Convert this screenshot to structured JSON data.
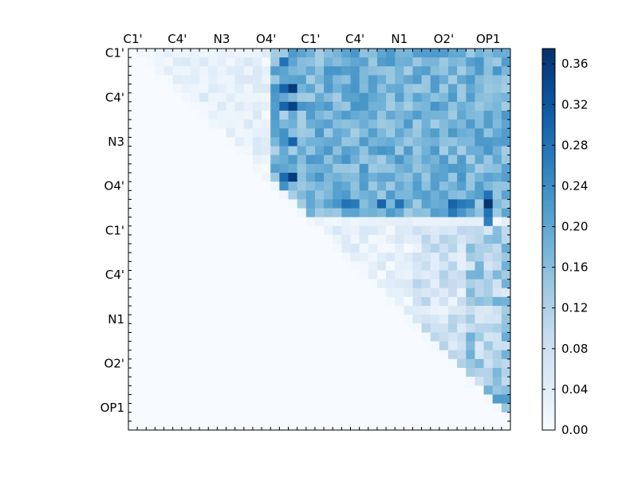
{
  "chart_data": {
    "type": "heatmap",
    "title": "",
    "xlabel": "",
    "ylabel": "",
    "x_tick_labels": [
      "C1'",
      "C4'",
      "N3",
      "O4'",
      "C1'",
      "C4'",
      "N1",
      "O2'",
      "OP1"
    ],
    "y_tick_labels": [
      "C1'",
      "C4'",
      "N3",
      "O4'",
      "C1'",
      "C4'",
      "N1",
      "O2'",
      "OP1"
    ],
    "grid_size": 43,
    "colormap": "Blues",
    "colorbar": {
      "vmin": 0.0,
      "vmax": 0.375,
      "tick_labels": [
        "0.00",
        "0.04",
        "0.08",
        "0.12",
        "0.16",
        "0.20",
        "0.24",
        "0.28",
        "0.32",
        "0.36"
      ],
      "tick_values": [
        0.0,
        0.04,
        0.08,
        0.12,
        0.16,
        0.2,
        0.24,
        0.28,
        0.32,
        0.36
      ]
    },
    "upper_triangle_only": true,
    "block_boundary": 20,
    "regions": {
      "block_A_within": "values mostly 0.00-0.08, slightly larger near columns 16-19 (up to ~0.30)",
      "block_A_to_B": "values mostly 0.14-0.22, peaks ~0.30",
      "block_B_within": "values mostly 0.00-0.10, higher in right-most columns (up to ~0.20)",
      "lower_triangle": "0.00"
    },
    "notable_cells": [
      {
        "row": 4,
        "col": 18,
        "value": 0.36
      },
      {
        "row": 6,
        "col": 18,
        "value": 0.35
      },
      {
        "row": 14,
        "col": 18,
        "value": 0.36
      },
      {
        "row": 17,
        "col": 40,
        "value": 0.37
      },
      {
        "row": 4,
        "col": 17,
        "value": 0.3
      },
      {
        "row": 6,
        "col": 17,
        "value": 0.3
      },
      {
        "row": 1,
        "col": 17,
        "value": 0.28
      },
      {
        "row": 14,
        "col": 17,
        "value": 0.29
      },
      {
        "row": 10,
        "col": 18,
        "value": 0.3
      },
      {
        "row": 17,
        "col": 36,
        "value": 0.3
      },
      {
        "row": 17,
        "col": 38,
        "value": 0.26
      },
      {
        "row": 17,
        "col": 28,
        "value": 0.3
      },
      {
        "row": 17,
        "col": 24,
        "value": 0.28
      },
      {
        "row": 17,
        "col": 25,
        "value": 0.27
      },
      {
        "row": 17,
        "col": 30,
        "value": 0.28
      },
      {
        "row": 17,
        "col": 37,
        "value": 0.27
      },
      {
        "row": 16,
        "col": 40,
        "value": 0.28
      },
      {
        "row": 18,
        "col": 40,
        "value": 0.28
      },
      {
        "row": 19,
        "col": 40,
        "value": 0.26
      },
      {
        "row": 18,
        "col": 36,
        "value": 0.27
      },
      {
        "row": 39,
        "col": 41,
        "value": 0.22
      },
      {
        "row": 39,
        "col": 42,
        "value": 0.22
      },
      {
        "row": 38,
        "col": 42,
        "value": 0.16
      },
      {
        "row": 26,
        "col": 42,
        "value": 0.18
      },
      {
        "row": 28,
        "col": 42,
        "value": 0.18
      },
      {
        "row": 34,
        "col": 42,
        "value": 0.18
      }
    ]
  }
}
